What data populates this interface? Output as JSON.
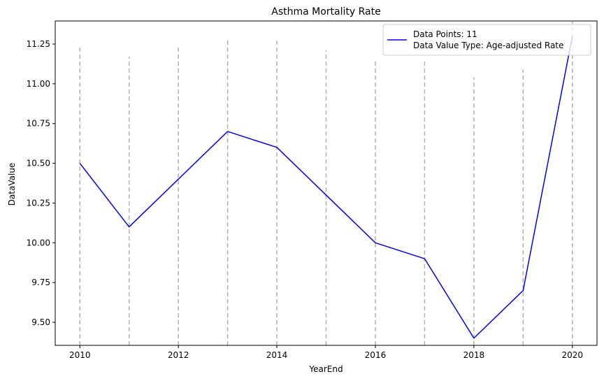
{
  "chart_data": {
    "type": "line",
    "title": "Asthma Mortality Rate",
    "xlabel": "YearEnd",
    "ylabel": "DataValue",
    "x": [
      2010,
      2011,
      2012,
      2013,
      2014,
      2015,
      2016,
      2017,
      2018,
      2019,
      2020
    ],
    "series": [
      {
        "values": [
          10.5,
          10.1,
          10.4,
          10.7,
          10.6,
          10.3,
          10.0,
          9.9,
          9.4,
          9.7,
          11.3
        ],
        "color": "#0000ff"
      }
    ],
    "vertical_dashed_lines": {
      "x": [
        2010,
        2011,
        2012,
        2013,
        2014,
        2015,
        2016,
        2017,
        2018,
        2019,
        2020
      ],
      "top": [
        11.24,
        11.17,
        11.23,
        11.29,
        11.27,
        11.21,
        11.14,
        11.14,
        11.04,
        11.09,
        11.39
      ],
      "color": "#b0b0b0"
    },
    "xlim": [
      2009.5,
      2020.5
    ],
    "ylim": [
      9.355,
      11.395
    ],
    "xticks": [
      2010,
      2012,
      2014,
      2016,
      2018,
      2020
    ],
    "xtick_labels": [
      "2010",
      "2012",
      "2014",
      "2016",
      "2018",
      "2020"
    ],
    "yticks": [
      9.5,
      9.75,
      10.0,
      10.25,
      10.5,
      10.75,
      11.0,
      11.25
    ],
    "ytick_labels": [
      "9.50",
      "9.75",
      "10.00",
      "10.25",
      "10.50",
      "10.75",
      "11.00",
      "11.25"
    ],
    "legend": {
      "position": "top-right",
      "lines": [
        "Data Points: 11",
        "Data Value Type: Age-adjusted Rate"
      ]
    },
    "grid": false
  }
}
